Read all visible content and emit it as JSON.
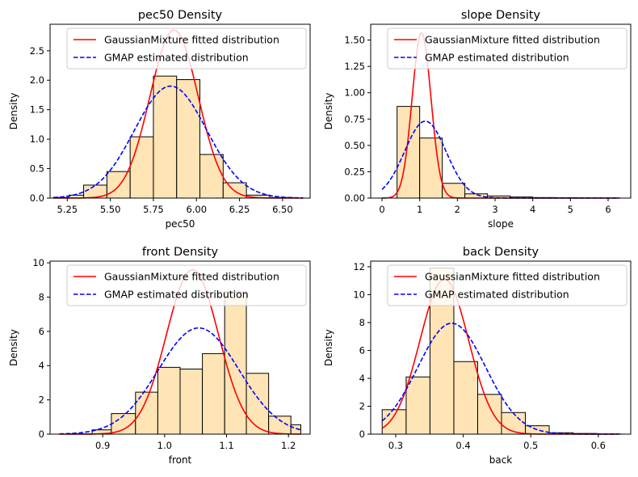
{
  "chart_data": [
    {
      "type": "bar",
      "title": "pec50 Density",
      "xlabel": "pec50",
      "ylabel": "Density",
      "xlim": [
        5.15,
        6.66
      ],
      "ylim": [
        0,
        2.95
      ],
      "xticks": [
        5.25,
        5.5,
        5.75,
        6.0,
        6.25,
        6.5
      ],
      "xtick_labels": [
        "5.25",
        "5.50",
        "5.75",
        "6.00",
        "6.25",
        "6.50"
      ],
      "yticks": [
        0,
        0.5,
        1.0,
        1.5,
        2.0,
        2.5
      ],
      "ytick_labels": [
        "0.0",
        "0.5",
        "1.0",
        "1.5",
        "2.0",
        "2.5"
      ],
      "hist": {
        "bin_edges": [
          5.17,
          5.26,
          5.345,
          5.48,
          5.615,
          5.75,
          5.885,
          6.02,
          6.155,
          6.29,
          6.425,
          6.56
        ],
        "densities": [
          0.01,
          0.05,
          0.22,
          0.45,
          1.04,
          2.07,
          2.01,
          0.74,
          0.26,
          0.05,
          0.01
        ]
      },
      "lines": [
        {
          "name": "GaussianMixture fitted distribution",
          "kind": "gaussian",
          "mean": 5.87,
          "sd": 0.14,
          "peak": 2.85,
          "x_range": [
            5.17,
            6.62
          ]
        },
        {
          "name": "GMAP estimated distribution",
          "kind": "gaussian",
          "mean": 5.85,
          "sd": 0.21,
          "peak": 1.9,
          "x_range": [
            5.17,
            6.62
          ]
        }
      ],
      "legend": "upper right"
    },
    {
      "type": "bar",
      "title": "slope Density",
      "xlabel": "slope",
      "ylabel": "Density",
      "xlim": [
        -0.3,
        6.6
      ],
      "ylim": [
        0,
        1.65
      ],
      "xticks": [
        0,
        1,
        2,
        3,
        4,
        5,
        6
      ],
      "xtick_labels": [
        "0",
        "1",
        "2",
        "3",
        "4",
        "5",
        "6"
      ],
      "yticks": [
        0,
        0.25,
        0.5,
        0.75,
        1.0,
        1.25,
        1.5
      ],
      "ytick_labels": [
        "0.00",
        "0.25",
        "0.50",
        "0.75",
        "1.00",
        "1.25",
        "1.50"
      ],
      "hist": {
        "bin_edges": [
          0.4,
          1.0,
          1.6,
          2.2,
          2.8,
          3.4,
          4.0,
          4.6,
          5.2,
          5.8,
          6.3
        ],
        "densities": [
          0.87,
          0.57,
          0.14,
          0.04,
          0.02,
          0.01,
          0.005,
          0.003,
          0.002,
          0.001
        ]
      },
      "lines": [
        {
          "name": "GaussianMixture fitted distribution",
          "kind": "gaussian",
          "mean": 1.05,
          "sd": 0.25,
          "peak": 1.57,
          "x_range": [
            0.0,
            6.3
          ]
        },
        {
          "name": "GMAP estimated distribution",
          "kind": "gaussian",
          "mean": 1.15,
          "sd": 0.55,
          "peak": 0.73,
          "x_range": [
            0.0,
            6.3
          ]
        }
      ],
      "legend": "upper right"
    },
    {
      "type": "bar",
      "title": "front Density",
      "xlabel": "front",
      "ylabel": "Density",
      "xlim": [
        0.815,
        1.235
      ],
      "ylim": [
        0,
        10.1
      ],
      "xticks": [
        0.9,
        1.0,
        1.1,
        1.2
      ],
      "xtick_labels": [
        "0.9",
        "1.0",
        "1.1",
        "1.2"
      ],
      "yticks": [
        0,
        2,
        4,
        6,
        8,
        10
      ],
      "ytick_labels": [
        "0",
        "2",
        "4",
        "6",
        "8",
        "10"
      ],
      "hist": {
        "bin_edges": [
          0.842,
          0.883,
          0.914,
          0.953,
          0.989,
          1.025,
          1.061,
          1.097,
          1.132,
          1.168,
          1.204,
          1.22
        ],
        "densities": [
          0.02,
          0.25,
          1.2,
          2.45,
          3.9,
          3.8,
          4.7,
          8.3,
          3.55,
          1.05,
          0.55
        ]
      },
      "lines": [
        {
          "name": "GaussianMixture fitted distribution",
          "kind": "gaussian",
          "mean": 1.045,
          "sd": 0.042,
          "peak": 9.6,
          "x_range": [
            0.83,
            1.22
          ]
        },
        {
          "name": "GMAP estimated distribution",
          "kind": "gaussian",
          "mean": 1.055,
          "sd": 0.065,
          "peak": 6.2,
          "x_range": [
            0.83,
            1.22
          ]
        }
      ],
      "legend": "upper right"
    },
    {
      "type": "bar",
      "title": "back Density",
      "xlabel": "back",
      "ylabel": "Density",
      "xlim": [
        0.263,
        0.648
      ],
      "ylim": [
        0,
        12.4
      ],
      "xticks": [
        0.3,
        0.4,
        0.5,
        0.6
      ],
      "xtick_labels": [
        "0.3",
        "0.4",
        "0.5",
        "0.6"
      ],
      "yticks": [
        0,
        2,
        4,
        6,
        8,
        10,
        12
      ],
      "ytick_labels": [
        "0",
        "2",
        "4",
        "6",
        "8",
        "10",
        "12"
      ],
      "hist": {
        "bin_edges": [
          0.28,
          0.3155,
          0.3508,
          0.3861,
          0.4214,
          0.4567,
          0.492,
          0.5273,
          0.5626,
          0.5979,
          0.633
        ],
        "densities": [
          1.75,
          4.1,
          11.9,
          5.2,
          2.85,
          1.55,
          0.6,
          0.1,
          0.05,
          0.02
        ]
      },
      "lines": [
        {
          "name": "GaussianMixture fitted distribution",
          "kind": "gaussian",
          "mean": 0.372,
          "sd": 0.036,
          "peak": 11.1,
          "x_range": [
            0.28,
            0.63
          ]
        },
        {
          "name": "GMAP estimated distribution",
          "kind": "gaussian",
          "mean": 0.383,
          "sd": 0.05,
          "peak": 7.95,
          "x_range": [
            0.28,
            0.63
          ]
        }
      ],
      "legend": "upper right"
    }
  ],
  "colors": {
    "bar_fill": "#ffe4b5",
    "bar_edge": "#000000",
    "fitted_line": "#ff0000",
    "estimated_line": "#0000ff"
  }
}
